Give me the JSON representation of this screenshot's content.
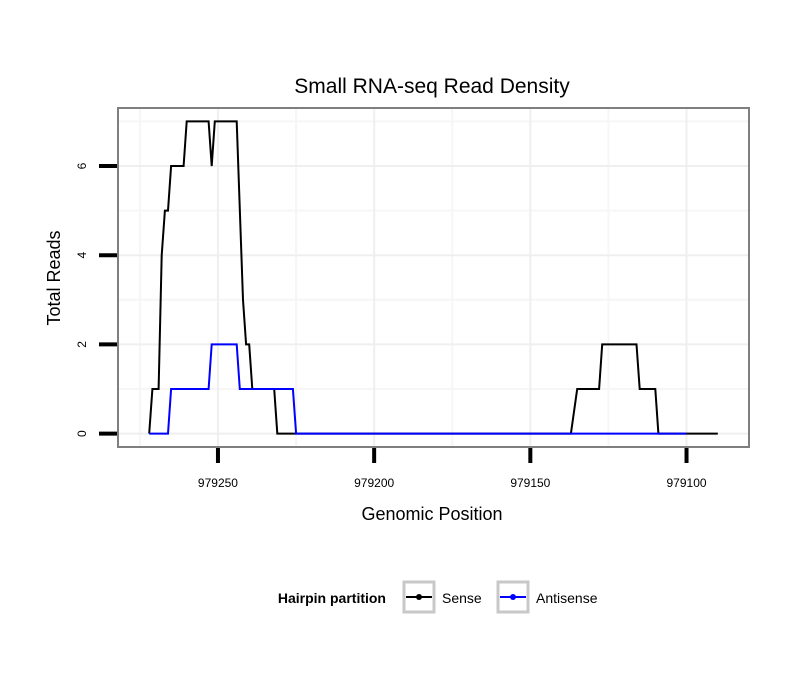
{
  "chart_data": {
    "type": "line",
    "title": "Small RNA-seq Read Density",
    "xlabel": "Genomic Position",
    "ylabel": "Total Reads",
    "x_reversed": true,
    "xlim": [
      979282,
      979080
    ],
    "ylim": [
      -0.3,
      7.3
    ],
    "x_ticks": [
      979250,
      979200,
      979150,
      979100
    ],
    "y_ticks": [
      0,
      2,
      4,
      6
    ],
    "grid": true,
    "legend_title": "Hairpin partition",
    "legend_position": "bottom",
    "series": [
      {
        "name": "Sense",
        "color": "#000000",
        "points": [
          [
            979272,
            0
          ],
          [
            979271,
            1
          ],
          [
            979269,
            1
          ],
          [
            979268,
            4
          ],
          [
            979267,
            5
          ],
          [
            979266,
            5
          ],
          [
            979265,
            6
          ],
          [
            979261,
            6
          ],
          [
            979260,
            7
          ],
          [
            979253,
            7
          ],
          [
            979252,
            6
          ],
          [
            979251,
            7
          ],
          [
            979244,
            7
          ],
          [
            979242,
            3
          ],
          [
            979241,
            2
          ],
          [
            979240,
            2
          ],
          [
            979239,
            1
          ],
          [
            979232,
            1
          ],
          [
            979231,
            0
          ],
          [
            979203,
            0
          ],
          [
            979137,
            0
          ],
          [
            979135,
            1
          ],
          [
            979128,
            1
          ],
          [
            979127,
            2
          ],
          [
            979116,
            2
          ],
          [
            979115,
            1
          ],
          [
            979110,
            1
          ],
          [
            979109,
            0
          ],
          [
            979090,
            0
          ]
        ]
      },
      {
        "name": "Antisense",
        "color": "#0000ff",
        "points": [
          [
            979272,
            0
          ],
          [
            979266,
            0
          ],
          [
            979265,
            1
          ],
          [
            979253,
            1
          ],
          [
            979252,
            2
          ],
          [
            979244,
            2
          ],
          [
            979243,
            1
          ],
          [
            979226,
            1
          ],
          [
            979225,
            0
          ],
          [
            979203,
            0
          ],
          [
            979100,
            0
          ]
        ]
      }
    ]
  }
}
